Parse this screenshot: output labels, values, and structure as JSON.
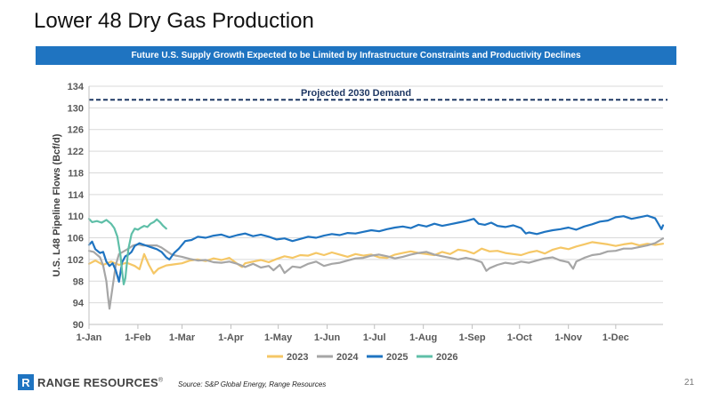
{
  "slide": {
    "title": "Lower 48 Dry Gas Production",
    "banner": "Future U.S. Supply Growth Expected to be Limited by Infrastructure Constraints and Productivity Declines",
    "source": "Source: S&P Global Energy, Range Resources",
    "page_number": "21",
    "logo_text": "RANGE RESOURCES",
    "logo_mark": "R",
    "logo_symbol": "®"
  },
  "chart_data": {
    "type": "line",
    "title": "",
    "xlabel": "",
    "ylabel": "U.S. L48 Pipeline Flows (Bcf/d)",
    "ylim": [
      90,
      134
    ],
    "y_ticks": [
      90,
      94,
      98,
      102,
      106,
      110,
      114,
      118,
      122,
      126,
      130,
      134
    ],
    "x_range_day_of_year": [
      1,
      365
    ],
    "x_ticks": [
      {
        "label": "1-Jan",
        "day": 1
      },
      {
        "label": "1-Feb",
        "day": 32
      },
      {
        "label": "1-Mar",
        "day": 60
      },
      {
        "label": "1-Apr",
        "day": 91
      },
      {
        "label": "1-May",
        "day": 121
      },
      {
        "label": "1-Jun",
        "day": 152
      },
      {
        "label": "1-Jul",
        "day": 182
      },
      {
        "label": "1-Aug",
        "day": 213
      },
      {
        "label": "1-Sep",
        "day": 244
      },
      {
        "label": "1-Oct",
        "day": 274
      },
      {
        "label": "1-Nov",
        "day": 305
      },
      {
        "label": "1-Dec",
        "day": 335
      }
    ],
    "grid": true,
    "legend_position": "bottom",
    "annotation": {
      "label": "Projected 2030 Demand",
      "value": 131.5,
      "style": "dashed",
      "color": "#1f3864"
    },
    "series": [
      {
        "name": "2023",
        "color": "#f5c766",
        "points": [
          [
            1,
            101.2
          ],
          [
            5,
            101.8
          ],
          [
            10,
            101.0
          ],
          [
            15,
            101.6
          ],
          [
            20,
            101.0
          ],
          [
            25,
            101.4
          ],
          [
            30,
            100.8
          ],
          [
            33,
            100.2
          ],
          [
            36,
            103.0
          ],
          [
            39,
            101.0
          ],
          [
            42,
            99.4
          ],
          [
            45,
            100.3
          ],
          [
            50,
            100.9
          ],
          [
            55,
            101.1
          ],
          [
            60,
            101.3
          ],
          [
            65,
            101.8
          ],
          [
            70,
            102.0
          ],
          [
            75,
            101.7
          ],
          [
            80,
            102.2
          ],
          [
            85,
            101.9
          ],
          [
            90,
            102.3
          ],
          [
            95,
            101.2
          ],
          [
            98,
            100.6
          ],
          [
            100,
            101.3
          ],
          [
            105,
            101.6
          ],
          [
            110,
            101.9
          ],
          [
            115,
            101.5
          ],
          [
            120,
            102.1
          ],
          [
            125,
            102.6
          ],
          [
            130,
            102.3
          ],
          [
            135,
            102.8
          ],
          [
            140,
            102.7
          ],
          [
            145,
            103.2
          ],
          [
            150,
            102.8
          ],
          [
            155,
            103.3
          ],
          [
            160,
            102.9
          ],
          [
            165,
            102.5
          ],
          [
            170,
            103.0
          ],
          [
            175,
            102.7
          ],
          [
            180,
            102.9
          ],
          [
            185,
            102.4
          ],
          [
            190,
            102.3
          ],
          [
            195,
            102.9
          ],
          [
            200,
            103.2
          ],
          [
            205,
            103.5
          ],
          [
            210,
            103.2
          ],
          [
            215,
            103.0
          ],
          [
            220,
            102.8
          ],
          [
            225,
            103.4
          ],
          [
            230,
            103.0
          ],
          [
            235,
            103.8
          ],
          [
            240,
            103.6
          ],
          [
            245,
            103.1
          ],
          [
            250,
            104.0
          ],
          [
            255,
            103.5
          ],
          [
            260,
            103.6
          ],
          [
            265,
            103.2
          ],
          [
            270,
            103.0
          ],
          [
            275,
            102.8
          ],
          [
            280,
            103.3
          ],
          [
            285,
            103.6
          ],
          [
            290,
            103.1
          ],
          [
            295,
            103.8
          ],
          [
            300,
            104.2
          ],
          [
            305,
            103.9
          ],
          [
            310,
            104.4
          ],
          [
            315,
            104.8
          ],
          [
            320,
            105.2
          ],
          [
            325,
            105.0
          ],
          [
            330,
            104.8
          ],
          [
            335,
            104.5
          ],
          [
            340,
            104.8
          ],
          [
            345,
            105.0
          ],
          [
            350,
            104.6
          ],
          [
            355,
            104.9
          ],
          [
            360,
            104.7
          ],
          [
            365,
            104.9
          ]
        ]
      },
      {
        "name": "2024",
        "color": "#a6a6a6",
        "points": [
          [
            1,
            103.6
          ],
          [
            4,
            103.4
          ],
          [
            8,
            102.4
          ],
          [
            10,
            100.9
          ],
          [
            12,
            98.0
          ],
          [
            13,
            95.2
          ],
          [
            14,
            92.9
          ],
          [
            16,
            97.0
          ],
          [
            18,
            101.0
          ],
          [
            20,
            103.0
          ],
          [
            23,
            103.5
          ],
          [
            26,
            104.0
          ],
          [
            29,
            104.6
          ],
          [
            32,
            104.8
          ],
          [
            35,
            104.6
          ],
          [
            38,
            104.6
          ],
          [
            41,
            104.6
          ],
          [
            44,
            104.6
          ],
          [
            47,
            104.2
          ],
          [
            50,
            103.6
          ],
          [
            53,
            103.0
          ],
          [
            56,
            102.7
          ],
          [
            60,
            102.5
          ],
          [
            65,
            102.1
          ],
          [
            70,
            101.8
          ],
          [
            75,
            101.9
          ],
          [
            80,
            101.5
          ],
          [
            85,
            101.4
          ],
          [
            90,
            101.6
          ],
          [
            95,
            101.2
          ],
          [
            100,
            100.6
          ],
          [
            105,
            101.2
          ],
          [
            110,
            100.5
          ],
          [
            115,
            100.8
          ],
          [
            118,
            100.0
          ],
          [
            122,
            101.0
          ],
          [
            125,
            99.5
          ],
          [
            130,
            100.7
          ],
          [
            135,
            100.5
          ],
          [
            140,
            101.2
          ],
          [
            145,
            101.6
          ],
          [
            150,
            100.8
          ],
          [
            155,
            101.2
          ],
          [
            160,
            101.4
          ],
          [
            165,
            101.8
          ],
          [
            170,
            102.2
          ],
          [
            175,
            102.3
          ],
          [
            180,
            102.7
          ],
          [
            185,
            102.9
          ],
          [
            190,
            102.6
          ],
          [
            195,
            102.2
          ],
          [
            200,
            102.5
          ],
          [
            205,
            102.9
          ],
          [
            210,
            103.2
          ],
          [
            215,
            103.4
          ],
          [
            220,
            102.9
          ],
          [
            225,
            102.6
          ],
          [
            230,
            102.3
          ],
          [
            235,
            102.0
          ],
          [
            240,
            102.3
          ],
          [
            245,
            102.0
          ],
          [
            250,
            101.5
          ],
          [
            253,
            99.9
          ],
          [
            255,
            100.4
          ],
          [
            260,
            101.0
          ],
          [
            265,
            101.4
          ],
          [
            270,
            101.2
          ],
          [
            275,
            101.6
          ],
          [
            280,
            101.4
          ],
          [
            285,
            101.8
          ],
          [
            290,
            102.2
          ],
          [
            295,
            102.4
          ],
          [
            300,
            101.8
          ],
          [
            305,
            101.5
          ],
          [
            308,
            100.3
          ],
          [
            310,
            101.6
          ],
          [
            315,
            102.3
          ],
          [
            320,
            102.8
          ],
          [
            325,
            103.0
          ],
          [
            330,
            103.5
          ],
          [
            335,
            103.6
          ],
          [
            340,
            104.0
          ],
          [
            345,
            104.0
          ],
          [
            350,
            104.3
          ],
          [
            355,
            104.6
          ],
          [
            360,
            105.0
          ],
          [
            365,
            105.9
          ]
        ]
      },
      {
        "name": "2025",
        "color": "#1f74c1",
        "points": [
          [
            1,
            104.7
          ],
          [
            3,
            105.3
          ],
          [
            5,
            103.9
          ],
          [
            8,
            103.2
          ],
          [
            10,
            103.4
          ],
          [
            12,
            101.6
          ],
          [
            14,
            100.8
          ],
          [
            16,
            101.3
          ],
          [
            18,
            100.0
          ],
          [
            20,
            97.9
          ],
          [
            22,
            101.5
          ],
          [
            24,
            102.6
          ],
          [
            26,
            102.9
          ],
          [
            28,
            103.4
          ],
          [
            30,
            104.5
          ],
          [
            33,
            105.0
          ],
          [
            36,
            104.7
          ],
          [
            40,
            104.3
          ],
          [
            44,
            103.9
          ],
          [
            47,
            103.4
          ],
          [
            50,
            102.4
          ],
          [
            52,
            102.0
          ],
          [
            55,
            103.2
          ],
          [
            58,
            104.0
          ],
          [
            62,
            105.4
          ],
          [
            66,
            105.6
          ],
          [
            70,
            106.2
          ],
          [
            75,
            106.0
          ],
          [
            80,
            106.4
          ],
          [
            85,
            106.6
          ],
          [
            90,
            106.1
          ],
          [
            95,
            106.5
          ],
          [
            100,
            106.8
          ],
          [
            105,
            106.3
          ],
          [
            110,
            106.6
          ],
          [
            115,
            106.2
          ],
          [
            120,
            105.7
          ],
          [
            125,
            105.9
          ],
          [
            130,
            105.4
          ],
          [
            135,
            105.8
          ],
          [
            140,
            106.2
          ],
          [
            145,
            106.0
          ],
          [
            150,
            106.4
          ],
          [
            155,
            106.7
          ],
          [
            160,
            106.5
          ],
          [
            165,
            106.9
          ],
          [
            170,
            106.8
          ],
          [
            175,
            107.1
          ],
          [
            180,
            107.4
          ],
          [
            185,
            107.2
          ],
          [
            190,
            107.6
          ],
          [
            195,
            107.9
          ],
          [
            200,
            108.1
          ],
          [
            205,
            107.8
          ],
          [
            210,
            108.4
          ],
          [
            215,
            108.1
          ],
          [
            220,
            108.6
          ],
          [
            225,
            108.2
          ],
          [
            230,
            108.5
          ],
          [
            235,
            108.8
          ],
          [
            240,
            109.1
          ],
          [
            245,
            109.5
          ],
          [
            248,
            108.6
          ],
          [
            252,
            108.4
          ],
          [
            256,
            108.8
          ],
          [
            260,
            108.2
          ],
          [
            265,
            108.0
          ],
          [
            270,
            108.3
          ],
          [
            275,
            107.8
          ],
          [
            278,
            106.8
          ],
          [
            280,
            107.0
          ],
          [
            285,
            106.7
          ],
          [
            290,
            107.1
          ],
          [
            295,
            107.4
          ],
          [
            300,
            107.6
          ],
          [
            305,
            107.9
          ],
          [
            310,
            107.5
          ],
          [
            315,
            108.1
          ],
          [
            320,
            108.5
          ],
          [
            325,
            109.0
          ],
          [
            330,
            109.2
          ],
          [
            335,
            109.8
          ],
          [
            340,
            110.0
          ],
          [
            345,
            109.5
          ],
          [
            350,
            109.8
          ],
          [
            355,
            110.1
          ],
          [
            360,
            109.6
          ],
          [
            362,
            108.6
          ],
          [
            364,
            107.6
          ],
          [
            365,
            108.3
          ]
        ]
      },
      {
        "name": "2026",
        "color": "#5fbfa8",
        "points": [
          [
            1,
            109.5
          ],
          [
            3,
            108.9
          ],
          [
            6,
            109.1
          ],
          [
            9,
            108.8
          ],
          [
            12,
            109.3
          ],
          [
            15,
            108.6
          ],
          [
            17,
            107.8
          ],
          [
            19,
            106.2
          ],
          [
            21,
            102.7
          ],
          [
            22,
            99.8
          ],
          [
            23,
            97.4
          ],
          [
            24,
            98.5
          ],
          [
            26,
            104.0
          ],
          [
            28,
            106.7
          ],
          [
            30,
            107.7
          ],
          [
            32,
            107.5
          ],
          [
            34,
            107.9
          ],
          [
            36,
            108.2
          ],
          [
            38,
            108.0
          ],
          [
            40,
            108.6
          ],
          [
            42,
            108.9
          ],
          [
            44,
            109.4
          ],
          [
            46,
            108.9
          ],
          [
            48,
            108.2
          ],
          [
            50,
            107.7
          ]
        ]
      }
    ]
  }
}
